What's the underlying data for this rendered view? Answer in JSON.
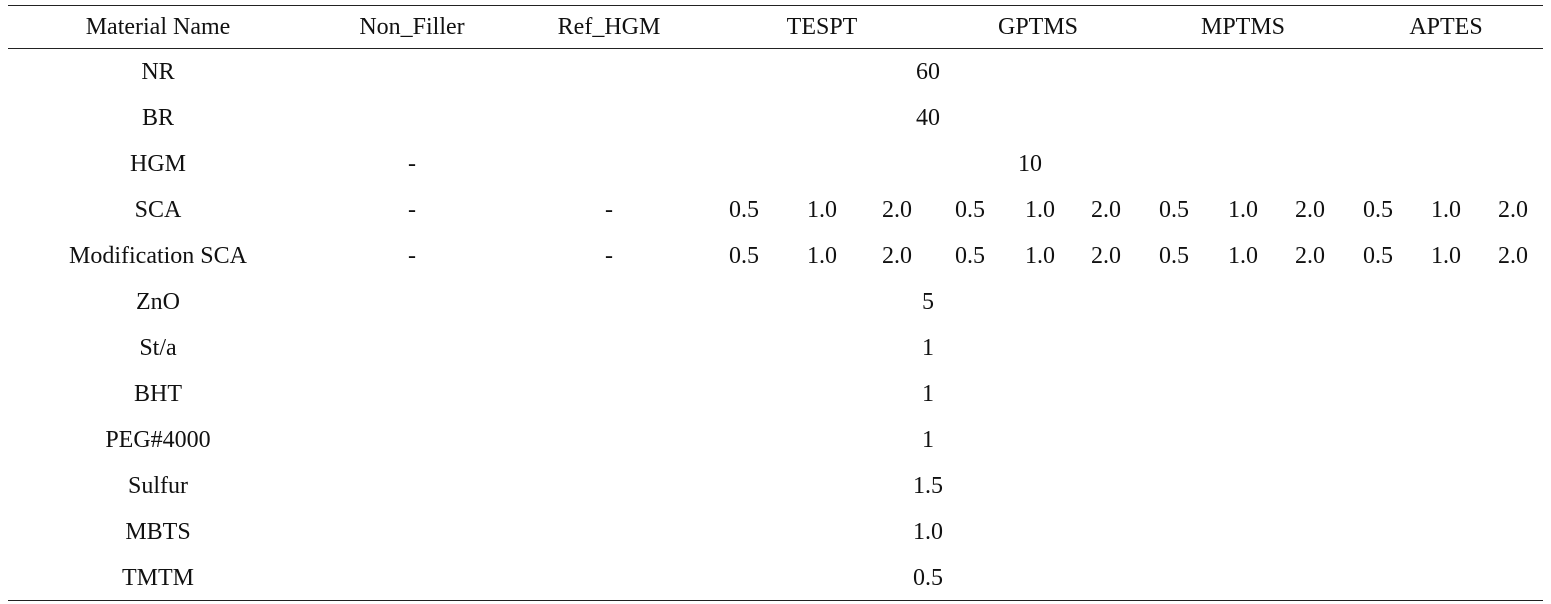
{
  "table": {
    "header": [
      "Material Name",
      "Non_Filler",
      "Ref_HGM",
      "TESPT",
      "GPTMS",
      "MPTMS",
      "APTES"
    ],
    "rows": [
      {
        "name": "NR",
        "cells": [
          "60"
        ]
      },
      {
        "name": "BR",
        "cells": [
          "40"
        ]
      },
      {
        "name": "HGM",
        "cells": [
          "-",
          "10"
        ]
      },
      {
        "name": "SCA",
        "cells": [
          "-",
          "-",
          "0.5",
          "1.0",
          "2.0",
          "0.5",
          "1.0",
          "2.0",
          "0.5",
          "1.0",
          "2.0",
          "0.5",
          "1.0",
          "2.0"
        ]
      },
      {
        "name": "Modification SCA",
        "cells": [
          "-",
          "-",
          "0.5",
          "1.0",
          "2.0",
          "0.5",
          "1.0",
          "2.0",
          "0.5",
          "1.0",
          "2.0",
          "0.5",
          "1.0",
          "2.0"
        ]
      },
      {
        "name": "ZnO",
        "cells": [
          "5"
        ]
      },
      {
        "name": "St/a",
        "cells": [
          "1"
        ]
      },
      {
        "name": "BHT",
        "cells": [
          "1"
        ]
      },
      {
        "name": "PEG#4000",
        "cells": [
          "1"
        ]
      },
      {
        "name": "Sulfur",
        "cells": [
          "1.5"
        ]
      },
      {
        "name": "MBTS",
        "cells": [
          "1.0"
        ]
      },
      {
        "name": "TMTM",
        "cells": [
          "0.5"
        ]
      }
    ]
  }
}
